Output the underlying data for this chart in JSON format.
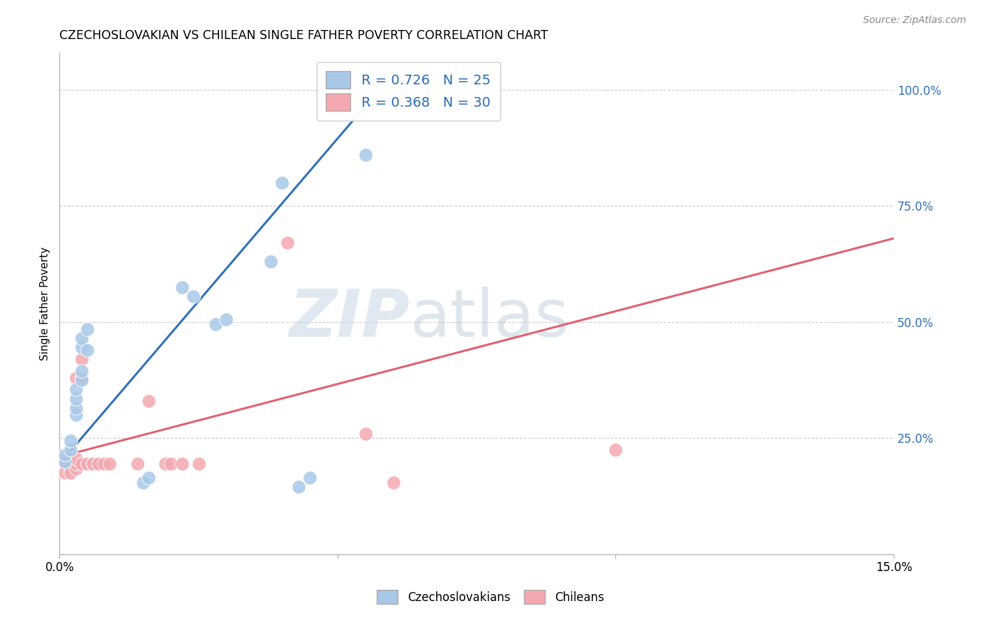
{
  "title": "CZECHOSLOVAKIAN VS CHILEAN SINGLE FATHER POVERTY CORRELATION CHART",
  "source": "Source: ZipAtlas.com",
  "ylabel": "Single Father Poverty",
  "xlim": [
    0.0,
    0.15
  ],
  "ylim": [
    0.0,
    1.08
  ],
  "grid_color": "#cccccc",
  "bg_color": "#ffffff",
  "watermark_zip": "ZIP",
  "watermark_atlas": "atlas",
  "legend_R_blue": "R = 0.726",
  "legend_N_blue": "N = 25",
  "legend_R_pink": "R = 0.368",
  "legend_N_pink": "N = 30",
  "blue_color": "#a8c8e8",
  "pink_color": "#f4a8b0",
  "blue_line_color": "#3070b8",
  "pink_line_color": "#e06070",
  "blue_scatter": [
    [
      0.001,
      0.2
    ],
    [
      0.001,
      0.215
    ],
    [
      0.002,
      0.225
    ],
    [
      0.002,
      0.245
    ],
    [
      0.003,
      0.3
    ],
    [
      0.003,
      0.315
    ],
    [
      0.003,
      0.335
    ],
    [
      0.003,
      0.355
    ],
    [
      0.004,
      0.375
    ],
    [
      0.004,
      0.395
    ],
    [
      0.004,
      0.445
    ],
    [
      0.004,
      0.465
    ],
    [
      0.005,
      0.485
    ],
    [
      0.005,
      0.44
    ],
    [
      0.015,
      0.155
    ],
    [
      0.016,
      0.165
    ],
    [
      0.022,
      0.575
    ],
    [
      0.024,
      0.555
    ],
    [
      0.028,
      0.495
    ],
    [
      0.03,
      0.505
    ],
    [
      0.038,
      0.63
    ],
    [
      0.04,
      0.8
    ],
    [
      0.043,
      0.145
    ],
    [
      0.045,
      0.165
    ],
    [
      0.055,
      0.86
    ]
  ],
  "pink_scatter": [
    [
      0.001,
      0.195
    ],
    [
      0.001,
      0.2
    ],
    [
      0.001,
      0.175
    ],
    [
      0.002,
      0.195
    ],
    [
      0.002,
      0.185
    ],
    [
      0.002,
      0.175
    ],
    [
      0.003,
      0.185
    ],
    [
      0.003,
      0.195
    ],
    [
      0.003,
      0.205
    ],
    [
      0.003,
      0.38
    ],
    [
      0.004,
      0.195
    ],
    [
      0.004,
      0.38
    ],
    [
      0.004,
      0.42
    ],
    [
      0.005,
      0.195
    ],
    [
      0.006,
      0.195
    ],
    [
      0.006,
      0.195
    ],
    [
      0.007,
      0.195
    ],
    [
      0.007,
      0.195
    ],
    [
      0.008,
      0.195
    ],
    [
      0.009,
      0.195
    ],
    [
      0.014,
      0.195
    ],
    [
      0.016,
      0.33
    ],
    [
      0.019,
      0.195
    ],
    [
      0.02,
      0.195
    ],
    [
      0.022,
      0.195
    ],
    [
      0.025,
      0.195
    ],
    [
      0.041,
      0.67
    ],
    [
      0.055,
      0.26
    ],
    [
      0.06,
      0.155
    ],
    [
      0.1,
      0.225
    ]
  ],
  "blue_line_x": [
    0.0,
    0.055
  ],
  "blue_line_y": [
    0.195,
    0.965
  ],
  "pink_line_x": [
    0.0,
    0.15
  ],
  "pink_line_y": [
    0.21,
    0.68
  ]
}
